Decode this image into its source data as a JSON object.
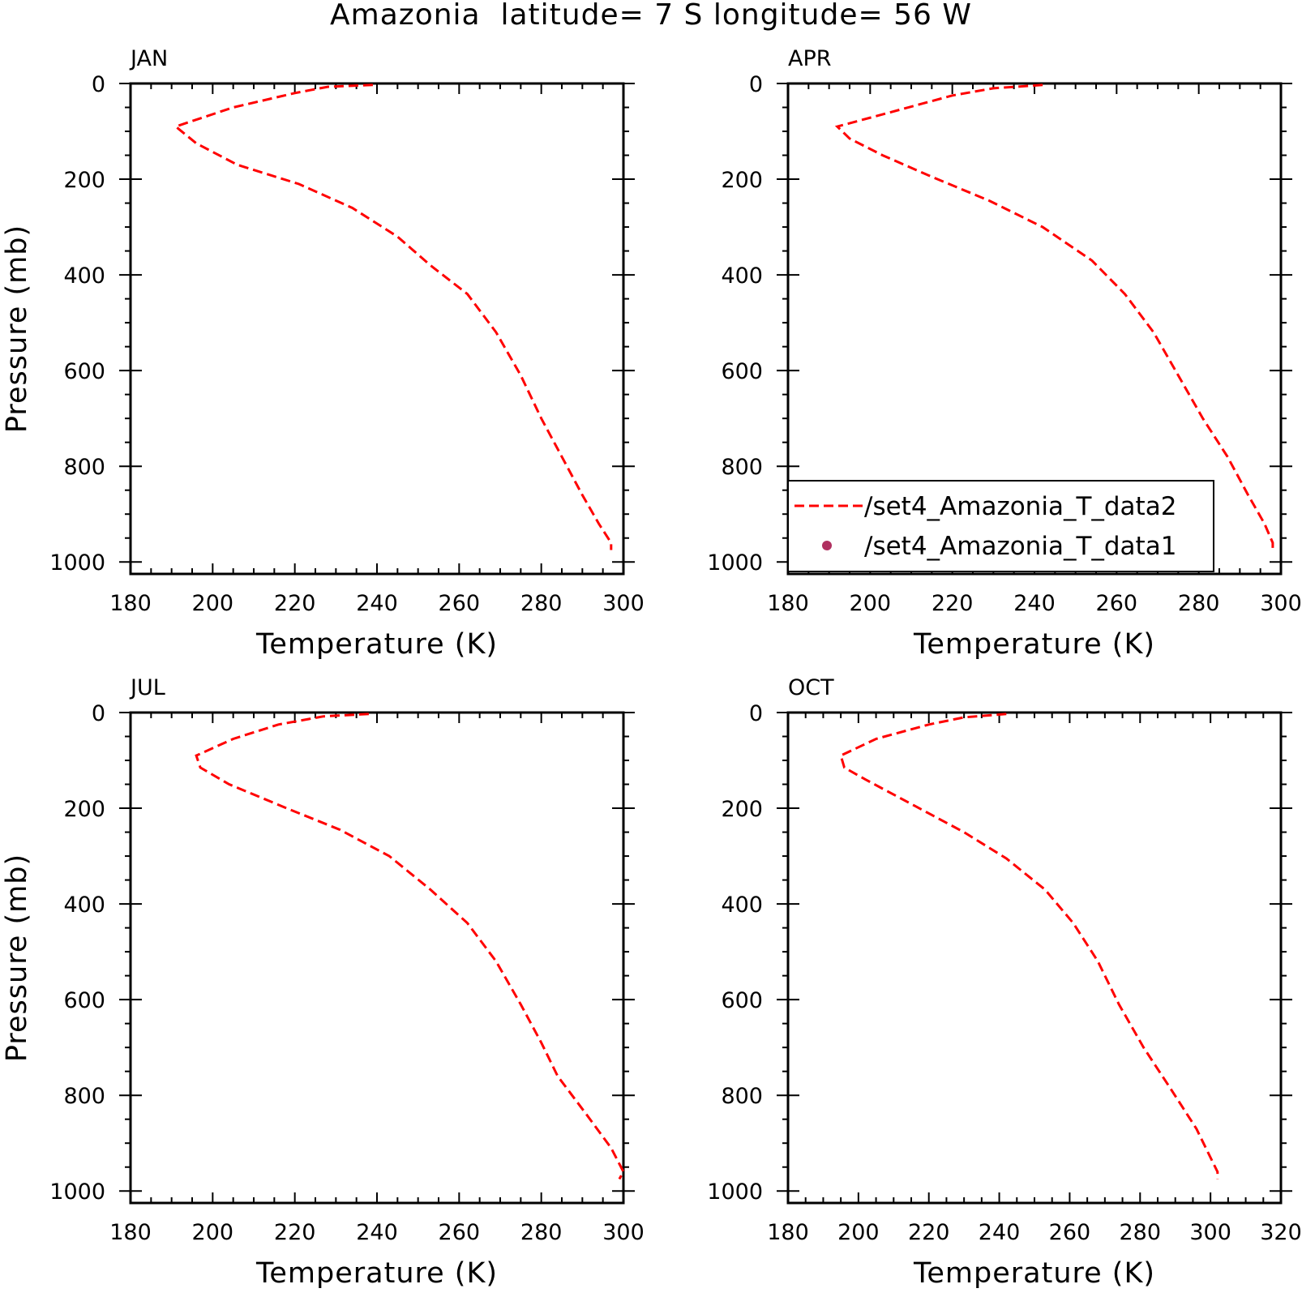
{
  "figure": {
    "title": "Amazonia  latitude= 7 S longitude= 56 W"
  },
  "legend": {
    "entries": [
      {
        "label": "/set4_Amazonia_T_data2",
        "style": "dashed-line",
        "color": "#ff0000"
      },
      {
        "label": "/set4_Amazonia_T_data1",
        "style": "dot",
        "color": "#b03060"
      }
    ]
  },
  "chart_data": [
    {
      "type": "line",
      "title": "JAN",
      "xlabel": "Temperature (K)",
      "ylabel": "Pressure (mb)",
      "xlim": [
        180,
        300
      ],
      "ylim": [
        1025,
        0
      ],
      "y_reversed": true,
      "xticks": [
        180,
        200,
        220,
        240,
        260,
        280,
        300
      ],
      "yticks": [
        0,
        200,
        400,
        600,
        800,
        1000
      ],
      "series": [
        {
          "color": "#ff0000",
          "line": "dashed",
          "points": [
            [
              239,
              3
            ],
            [
              228,
              7
            ],
            [
              220,
              20
            ],
            [
              205,
              50
            ],
            [
              191,
              90
            ],
            [
              196,
              125
            ],
            [
              206,
              170
            ],
            [
              221,
              210
            ],
            [
              234,
              260
            ],
            [
              245,
              320
            ],
            [
              253,
              380
            ],
            [
              262,
              440
            ],
            [
              269,
              520
            ],
            [
              275,
              610
            ],
            [
              280,
              700
            ],
            [
              285,
              780
            ],
            [
              290,
              860
            ],
            [
              294,
              920
            ],
            [
              297,
              960
            ],
            [
              297,
              975
            ]
          ]
        }
      ]
    },
    {
      "type": "line",
      "title": "APR",
      "xlabel": "Temperature (K)",
      "ylabel": "",
      "xlim": [
        180,
        300
      ],
      "ylim": [
        1025,
        0
      ],
      "y_reversed": true,
      "xticks": [
        180,
        200,
        220,
        240,
        260,
        280,
        300
      ],
      "yticks": [
        0,
        200,
        400,
        600,
        800,
        1000
      ],
      "legend_position": "lower-left",
      "series": [
        {
          "color": "#ff0000",
          "line": "dashed",
          "points": [
            [
              242,
              3
            ],
            [
              230,
              10
            ],
            [
              220,
              25
            ],
            [
              205,
              60
            ],
            [
              192,
              90
            ],
            [
              195,
              115
            ],
            [
              203,
              150
            ],
            [
              215,
              195
            ],
            [
              229,
              245
            ],
            [
              242,
              300
            ],
            [
              254,
              370
            ],
            [
              262,
              440
            ],
            [
              269,
              520
            ],
            [
              275,
              610
            ],
            [
              281,
              700
            ],
            [
              287,
              780
            ],
            [
              292,
              860
            ],
            [
              296,
              920
            ],
            [
              298,
              960
            ],
            [
              298,
              975
            ]
          ]
        }
      ]
    },
    {
      "type": "line",
      "title": "JUL",
      "xlabel": "Temperature (K)",
      "ylabel": "Pressure (mb)",
      "xlim": [
        180,
        300
      ],
      "ylim": [
        1025,
        0
      ],
      "y_reversed": true,
      "xticks": [
        180,
        200,
        220,
        240,
        260,
        280,
        300
      ],
      "yticks": [
        0,
        200,
        400,
        600,
        800,
        1000
      ],
      "series": [
        {
          "color": "#ff0000",
          "line": "dashed",
          "points": [
            [
              238,
              3
            ],
            [
              227,
              8
            ],
            [
              216,
              25
            ],
            [
              205,
              55
            ],
            [
              196,
              90
            ],
            [
              197,
              115
            ],
            [
              204,
              150
            ],
            [
              218,
              200
            ],
            [
              231,
              245
            ],
            [
              243,
              300
            ],
            [
              253,
              370
            ],
            [
              262,
              440
            ],
            [
              269,
              520
            ],
            [
              275,
              610
            ],
            [
              280,
              690
            ],
            [
              284,
              760
            ],
            [
              291,
              840
            ],
            [
              297,
              910
            ],
            [
              300,
              960
            ],
            [
              299,
              975
            ]
          ]
        }
      ]
    },
    {
      "type": "line",
      "title": "OCT",
      "xlabel": "Temperature (K)",
      "ylabel": "",
      "xlim": [
        180,
        320
      ],
      "ylim": [
        1025,
        0
      ],
      "y_reversed": true,
      "xticks": [
        180,
        200,
        220,
        240,
        260,
        280,
        300,
        320
      ],
      "yticks": [
        0,
        200,
        400,
        600,
        800,
        1000
      ],
      "series": [
        {
          "color": "#ff0000",
          "line": "dashed",
          "points": [
            [
              242,
              3
            ],
            [
              230,
              10
            ],
            [
              220,
              25
            ],
            [
              205,
              55
            ],
            [
              195,
              90
            ],
            [
              196,
              115
            ],
            [
              202,
              140
            ],
            [
              216,
              195
            ],
            [
              230,
              250
            ],
            [
              242,
              305
            ],
            [
              253,
              370
            ],
            [
              261,
              440
            ],
            [
              268,
              520
            ],
            [
              274,
              610
            ],
            [
              281,
              700
            ],
            [
              289,
              790
            ],
            [
              296,
              870
            ],
            [
              300,
              930
            ],
            [
              302,
              960
            ],
            [
              302,
              975
            ]
          ]
        }
      ]
    }
  ]
}
